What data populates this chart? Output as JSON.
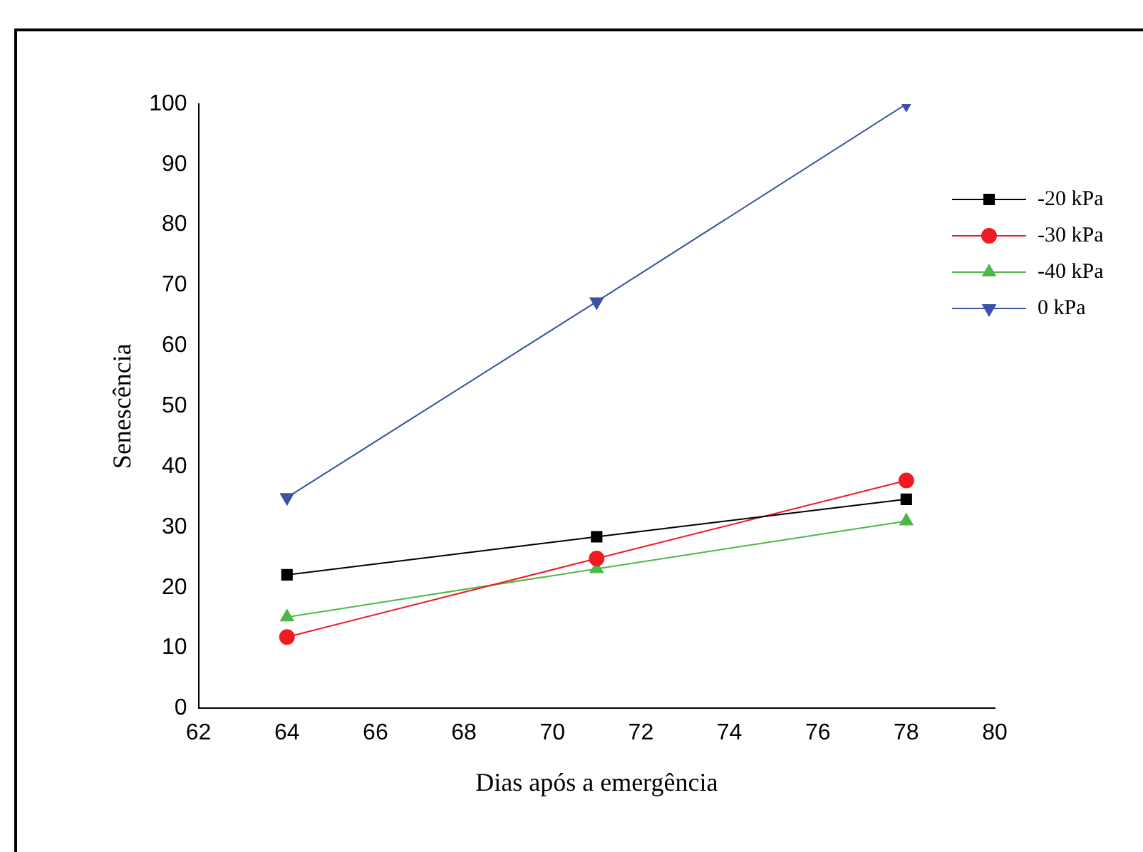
{
  "chart_data": {
    "type": "line",
    "xlabel": "Dias após a emergência",
    "ylabel": "Senescência",
    "x": [
      64,
      71,
      78
    ],
    "series": [
      {
        "name": "-20 kPa",
        "color": "#000000",
        "marker": "square",
        "values": [
          22.1,
          28.4,
          34.6
        ]
      },
      {
        "name": "-30 kPa",
        "color": "#ed1c24",
        "marker": "circle",
        "values": [
          11.8,
          24.8,
          37.7
        ]
      },
      {
        "name": "-40 kPa",
        "color": "#4cb848",
        "marker": "triangle",
        "values": [
          15.1,
          23.1,
          31.0
        ]
      },
      {
        "name": "0 kPa",
        "color": "#3a53a4",
        "marker": "triangle-down",
        "values": [
          34.9,
          67.3,
          100
        ]
      }
    ],
    "xlim": [
      62,
      80
    ],
    "xticks": [
      62,
      64,
      66,
      68,
      70,
      72,
      74,
      76,
      78,
      80
    ],
    "ylim": [
      0,
      100
    ],
    "yticks": [
      0,
      10,
      20,
      30,
      40,
      50,
      60,
      70,
      80,
      90,
      100
    ],
    "grid": false,
    "legend": "top right",
    "line_style": "solid"
  }
}
